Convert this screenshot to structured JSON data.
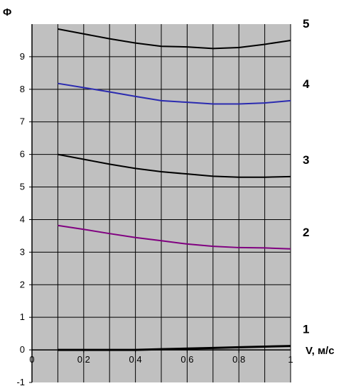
{
  "chart_data": {
    "type": "line",
    "title": "",
    "ylabel": "Φ",
    "xlabel": "V, м/с",
    "xlim": [
      0,
      1
    ],
    "ylim": [
      -1,
      10
    ],
    "x_ticks": [
      "0",
      "0.2",
      "0.4",
      "0.6",
      "0.8",
      "1"
    ],
    "y_ticks": [
      "-1",
      "0",
      "1",
      "2",
      "3",
      "4",
      "5",
      "6",
      "7",
      "8",
      "9"
    ],
    "grid": true,
    "plot_background": "#c0c0c0",
    "series": [
      {
        "name": "1",
        "color": "#000000",
        "width": 3,
        "x": [
          0.1,
          0.2,
          0.3,
          0.4,
          0.5,
          0.6,
          0.7,
          0.8,
          0.9,
          1.0
        ],
        "y": [
          0.0,
          0.0,
          0.0,
          0.0,
          0.02,
          0.04,
          0.06,
          0.08,
          0.1,
          0.12
        ]
      },
      {
        "name": "2",
        "color": "#800080",
        "width": 2,
        "x": [
          0.1,
          0.2,
          0.3,
          0.4,
          0.5,
          0.6,
          0.7,
          0.8,
          0.9,
          1.0
        ],
        "y": [
          3.82,
          3.7,
          3.57,
          3.45,
          3.35,
          3.25,
          3.18,
          3.14,
          3.13,
          3.1
        ]
      },
      {
        "name": "3",
        "color": "#000000",
        "width": 2,
        "x": [
          0.1,
          0.2,
          0.3,
          0.4,
          0.5,
          0.6,
          0.7,
          0.8,
          0.9,
          1.0
        ],
        "y": [
          6.0,
          5.85,
          5.7,
          5.57,
          5.47,
          5.4,
          5.33,
          5.3,
          5.3,
          5.32
        ]
      },
      {
        "name": "4",
        "color": "#2b2bb0",
        "width": 2,
        "x": [
          0.1,
          0.2,
          0.3,
          0.4,
          0.5,
          0.6,
          0.7,
          0.8,
          0.9,
          1.0
        ],
        "y": [
          8.18,
          8.05,
          7.92,
          7.78,
          7.65,
          7.6,
          7.55,
          7.55,
          7.58,
          7.65
        ]
      },
      {
        "name": "5",
        "color": "#000000",
        "width": 2,
        "x": [
          0.1,
          0.2,
          0.3,
          0.4,
          0.5,
          0.6,
          0.7,
          0.8,
          0.9,
          1.0
        ],
        "y": [
          9.85,
          9.7,
          9.55,
          9.42,
          9.32,
          9.3,
          9.25,
          9.28,
          9.38,
          9.5
        ]
      }
    ]
  }
}
